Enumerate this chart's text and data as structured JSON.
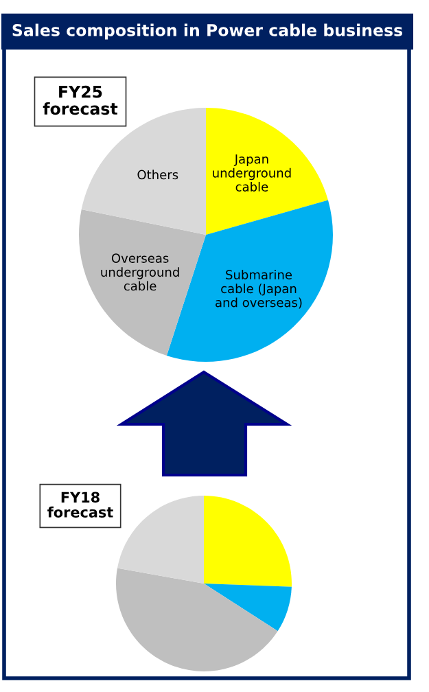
{
  "chart_data": [
    {
      "type": "pie",
      "title": "FY25\nforecast",
      "annotations": [
        "Sales composition in Power cable business"
      ],
      "categories": [
        "Japan\nunderground\ncable",
        "Submarine\ncable (Japan\nand overseas)",
        "Overseas\nunderground\ncable",
        "Others"
      ],
      "values": [
        20.6,
        34.4,
        23.2,
        21.8
      ],
      "colors": [
        "#ffff00",
        "#00b0f0",
        "#bfbfbf",
        "#d9d9d9"
      ]
    },
    {
      "type": "pie",
      "title": "FY18\nforecast",
      "categories": [
        null,
        null,
        null,
        null
      ],
      "values": [
        25.6,
        8.5,
        43.7,
        22.2
      ],
      "colors": [
        "#ffff00",
        "#00b0f0",
        "#bfbfbf",
        "#d9d9d9"
      ]
    }
  ]
}
